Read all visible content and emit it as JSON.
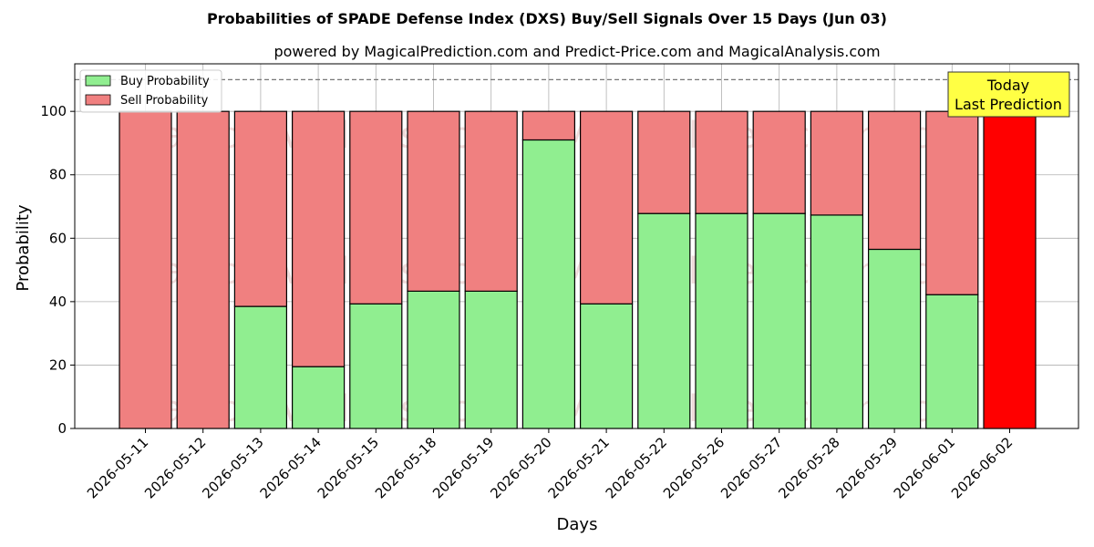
{
  "chart_data": {
    "type": "bar",
    "stacked": true,
    "title": "Probabilities of SPADE Defense Index (DXS) Buy/Sell Signals Over 15 Days (Jun 03)",
    "subtitle": "powered by MagicalPrediction.com and Predict-Price.com and MagicalAnalysis.com",
    "xlabel": "Days",
    "ylabel": "Probability",
    "ylim": [
      0,
      115
    ],
    "yticks": [
      0,
      20,
      40,
      60,
      80,
      100
    ],
    "reference_line": 110,
    "grid": true,
    "legend_position": "top-left",
    "categories": [
      "2026-05-11",
      "2026-05-12",
      "2026-05-13",
      "2026-05-14",
      "2026-05-15",
      "2026-05-18",
      "2026-05-19",
      "2026-05-20",
      "2026-05-21",
      "2026-05-22",
      "2026-05-26",
      "2026-05-27",
      "2026-05-28",
      "2026-05-29",
      "2026-06-01",
      "2026-06-02"
    ],
    "series": [
      {
        "name": "Buy Probability",
        "color": "#90ee90",
        "values": [
          0,
          0,
          38.5,
          19.5,
          39.3,
          43.3,
          43.3,
          91,
          39.3,
          67.8,
          67.8,
          67.8,
          67.3,
          56.5,
          42.2,
          0
        ]
      },
      {
        "name": "Sell Probability",
        "color": "#f08080",
        "values": [
          100,
          100,
          61.5,
          80.5,
          60.7,
          56.7,
          56.7,
          9,
          60.7,
          32.2,
          32.2,
          32.2,
          32.7,
          43.5,
          57.8,
          100
        ]
      }
    ],
    "highlight": {
      "index": 15,
      "color": "#ff0000"
    },
    "annotation": {
      "line1": "Today",
      "line2": "Last Prediction",
      "color": "#ffff44"
    },
    "watermarks": [
      "MagicalAnalysis.com",
      "MagicalPrediction.com"
    ]
  }
}
